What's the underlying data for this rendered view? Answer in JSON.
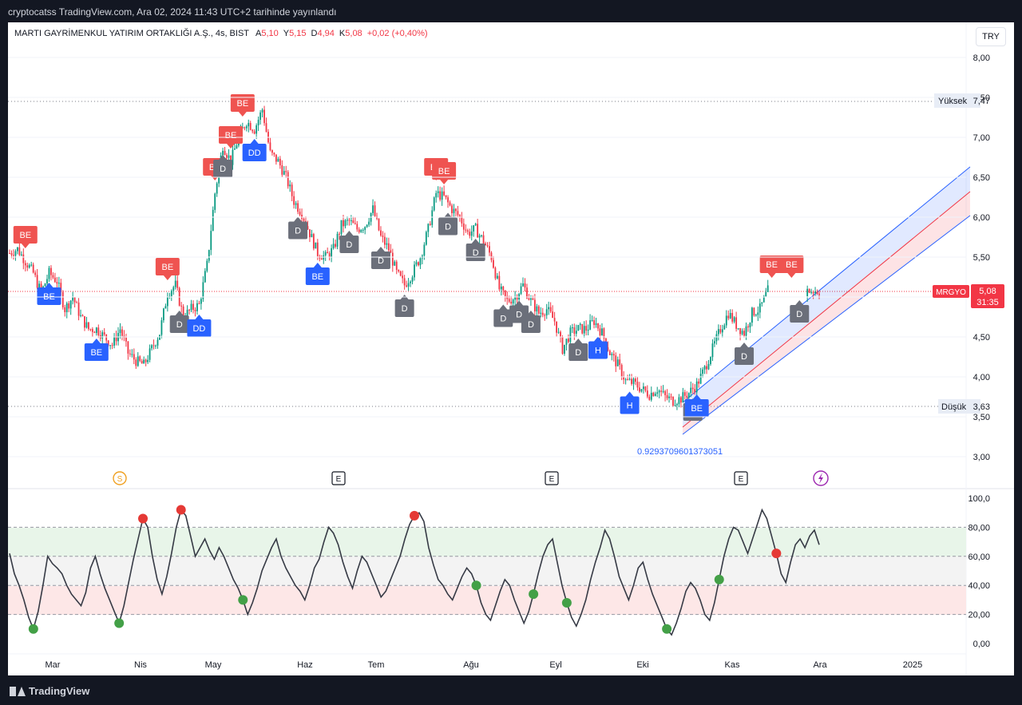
{
  "header": {
    "publish_text": "cryptocatss TradingView.com, Ara 02, 2024 11:43 UTC+2 tarihinde yayınlandı"
  },
  "legend": {
    "symbol": "MARTI GAYRİMENKUL YATIRIM ORTAKLIĞI A.Ş., 4s, BIST",
    "open_label": "A",
    "open": "5,10",
    "high_label": "Y",
    "high": "5,15",
    "low_label": "D",
    "low": "4,94",
    "close_label": "K",
    "close": "5,08",
    "change": "+0,02 (+0,40%)"
  },
  "currency": "TRY",
  "price_axis": {
    "ticks": [
      "8,00",
      "7,50",
      "7,00",
      "6,50",
      "6,00",
      "5,50",
      "5,00",
      "4,50",
      "4,00",
      "3,50",
      "3,00"
    ],
    "high_label": "Yüksek",
    "high_value": "7,47",
    "low_label": "Düşük",
    "low_value": "3,63",
    "ticker_tag": "MRGYO",
    "last_price": "5,08",
    "countdown": "31:35"
  },
  "channel_label": "0.9293709601373051",
  "time_axis": [
    "Mar",
    "Nis",
    "May",
    "Haz",
    "Tem",
    "Ağu",
    "Eyl",
    "Eki",
    "Kas",
    "Ara",
    "2025"
  ],
  "events": [
    "S",
    "E",
    "E",
    "E"
  ],
  "osc_axis": [
    "100,0",
    "80,00",
    "60,00",
    "40,00",
    "20,00",
    "0,00"
  ],
  "branding": "TradingView",
  "colors": {
    "up": "#089981",
    "down": "#f23645",
    "signal_red": "#ef5350",
    "signal_blue": "#2962ff",
    "signal_gray": "#6b6f7a",
    "channel_blue": "#2962ff",
    "channel_red": "#f23645",
    "osc_line": "#363a45"
  },
  "chart_data": [
    {
      "type": "candlestick",
      "x_axis": [
        "Mar",
        "Nis",
        "May",
        "Haz",
        "Tem",
        "Ağu",
        "Eyl",
        "Eki",
        "Kas",
        "Ara",
        "2025"
      ],
      "y_range": [
        2.9,
        8.2
      ],
      "close_path": [
        [
          0,
          5.55
        ],
        [
          4,
          5.6
        ],
        [
          8,
          5.45
        ],
        [
          12,
          5.3
        ],
        [
          16,
          5.05
        ],
        [
          20,
          5.3
        ],
        [
          24,
          5.2
        ],
        [
          28,
          4.85
        ],
        [
          32,
          5.0
        ],
        [
          36,
          4.75
        ],
        [
          40,
          4.6
        ],
        [
          44,
          4.6
        ],
        [
          48,
          4.5
        ],
        [
          52,
          4.4
        ],
        [
          56,
          4.6
        ],
        [
          60,
          4.3
        ],
        [
          64,
          4.2
        ],
        [
          68,
          4.15
        ],
        [
          72,
          4.35
        ],
        [
          76,
          4.55
        ],
        [
          80,
          5.05
        ],
        [
          84,
          5.15
        ],
        [
          88,
          4.75
        ],
        [
          92,
          4.85
        ],
        [
          96,
          4.9
        ],
        [
          100,
          5.4
        ],
        [
          104,
          6.3
        ],
        [
          108,
          6.9
        ],
        [
          112,
          6.7
        ],
        [
          116,
          7.0
        ],
        [
          120,
          7.2
        ],
        [
          124,
          7.1
        ],
        [
          128,
          7.35
        ],
        [
          132,
          6.8
        ],
        [
          136,
          6.7
        ],
        [
          140,
          6.5
        ],
        [
          144,
          6.2
        ],
        [
          148,
          6.05
        ],
        [
          152,
          5.8
        ],
        [
          156,
          5.55
        ],
        [
          160,
          5.5
        ],
        [
          164,
          5.6
        ],
        [
          168,
          5.9
        ],
        [
          172,
          5.95
        ],
        [
          176,
          5.85
        ],
        [
          180,
          5.9
        ],
        [
          184,
          6.1
        ],
        [
          188,
          5.75
        ],
        [
          192,
          5.6
        ],
        [
          196,
          5.3
        ],
        [
          200,
          5.15
        ],
        [
          204,
          5.3
        ],
        [
          208,
          5.5
        ],
        [
          212,
          5.85
        ],
        [
          216,
          6.3
        ],
        [
          220,
          6.25
        ],
        [
          224,
          6.1
        ],
        [
          228,
          6.0
        ],
        [
          232,
          5.8
        ],
        [
          236,
          5.85
        ],
        [
          240,
          5.7
        ],
        [
          244,
          5.5
        ],
        [
          248,
          5.1
        ],
        [
          252,
          4.95
        ],
        [
          256,
          5.0
        ],
        [
          260,
          5.15
        ],
        [
          264,
          4.95
        ],
        [
          268,
          4.8
        ],
        [
          272,
          4.85
        ],
        [
          276,
          4.7
        ],
        [
          280,
          4.35
        ],
        [
          284,
          4.55
        ],
        [
          288,
          4.6
        ],
        [
          292,
          4.6
        ],
        [
          296,
          4.7
        ],
        [
          300,
          4.55
        ],
        [
          304,
          4.3
        ],
        [
          308,
          4.15
        ],
        [
          312,
          3.95
        ],
        [
          316,
          3.92
        ],
        [
          320,
          3.85
        ],
        [
          324,
          3.78
        ],
        [
          328,
          3.85
        ],
        [
          332,
          3.75
        ],
        [
          336,
          3.7
        ],
        [
          340,
          3.73
        ],
        [
          344,
          3.8
        ],
        [
          348,
          3.9
        ],
        [
          352,
          4.1
        ],
        [
          356,
          4.35
        ],
        [
          360,
          4.6
        ],
        [
          364,
          4.8
        ],
        [
          368,
          4.65
        ],
        [
          372,
          4.55
        ],
        [
          376,
          4.8
        ],
        [
          380,
          4.85
        ],
        [
          384,
          5.08
        ]
      ],
      "signals": [
        {
          "text": "BE",
          "kind": "above",
          "color": "red",
          "i": 8
        },
        {
          "text": "BE",
          "kind": "below",
          "color": "blue",
          "i": 20
        },
        {
          "text": "BE",
          "kind": "below",
          "color": "blue",
          "i": 44
        },
        {
          "text": "BE",
          "kind": "above",
          "color": "red",
          "i": 80
        },
        {
          "text": "D",
          "kind": "below",
          "color": "gray",
          "i": 86
        },
        {
          "text": "DD",
          "kind": "below",
          "color": "blue",
          "i": 96
        },
        {
          "text": "BE",
          "kind": "above",
          "color": "red",
          "i": 104
        },
        {
          "text": "D",
          "kind": "below",
          "color": "gray",
          "i": 108
        },
        {
          "text": "BE",
          "kind": "above",
          "color": "red",
          "i": 112
        },
        {
          "text": "BE",
          "kind": "above",
          "color": "red",
          "i": 118
        },
        {
          "text": "DD",
          "kind": "below",
          "color": "blue",
          "i": 124
        },
        {
          "text": "D",
          "kind": "below",
          "color": "gray",
          "i": 146
        },
        {
          "text": "BE",
          "kind": "below",
          "color": "blue",
          "i": 156
        },
        {
          "text": "D",
          "kind": "below",
          "color": "gray",
          "i": 172
        },
        {
          "text": "D",
          "kind": "below",
          "color": "gray",
          "i": 188
        },
        {
          "text": "D",
          "kind": "below",
          "color": "gray",
          "i": 200
        },
        {
          "text": "BE",
          "kind": "above",
          "color": "red",
          "i": 216
        },
        {
          "text": "BE",
          "kind": "above",
          "color": "red",
          "i": 220
        },
        {
          "text": "D",
          "kind": "below",
          "color": "gray",
          "i": 222
        },
        {
          "text": "D",
          "kind": "below",
          "color": "gray",
          "i": 236
        },
        {
          "text": "D",
          "kind": "below",
          "color": "gray",
          "i": 250
        },
        {
          "text": "D",
          "kind": "below",
          "color": "gray",
          "i": 258
        },
        {
          "text": "D",
          "kind": "below",
          "color": "gray",
          "i": 264
        },
        {
          "text": "D",
          "kind": "below",
          "color": "gray",
          "i": 288
        },
        {
          "text": "H",
          "kind": "below",
          "color": "blue",
          "i": 298
        },
        {
          "text": "H",
          "kind": "below",
          "color": "blue",
          "i": 314
        },
        {
          "text": "D",
          "kind": "below",
          "color": "gray",
          "i": 346
        },
        {
          "text": "BE",
          "kind": "below",
          "color": "blue",
          "i": 348
        },
        {
          "text": "D",
          "kind": "below",
          "color": "gray",
          "i": 372
        },
        {
          "text": "BE",
          "kind": "above",
          "color": "red",
          "i": 386
        },
        {
          "text": "BE",
          "kind": "above",
          "color": "red",
          "i": 396
        },
        {
          "text": "D",
          "kind": "below",
          "color": "gray",
          "i": 400
        }
      ]
    },
    {
      "type": "line",
      "name": "oscillator",
      "y_range": [
        0,
        100
      ],
      "bands": [
        [
          20,
          40
        ],
        [
          60,
          80
        ]
      ],
      "levels": [
        100,
        80,
        60,
        40,
        20,
        0
      ],
      "values": [
        62,
        48,
        40,
        30,
        18,
        10,
        22,
        40,
        60,
        55,
        52,
        48,
        40,
        34,
        30,
        26,
        35,
        52,
        60,
        48,
        38,
        30,
        22,
        14,
        26,
        42,
        58,
        72,
        86,
        80,
        60,
        44,
        34,
        46,
        62,
        80,
        92,
        88,
        74,
        60,
        66,
        72,
        64,
        58,
        66,
        60,
        52,
        44,
        38,
        30,
        20,
        28,
        38,
        50,
        58,
        66,
        72,
        60,
        52,
        46,
        40,
        36,
        30,
        40,
        52,
        58,
        70,
        80,
        76,
        68,
        56,
        46,
        38,
        50,
        60,
        56,
        48,
        40,
        32,
        36,
        44,
        52,
        60,
        72,
        82,
        88,
        90,
        84,
        66,
        54,
        44,
        40,
        34,
        30,
        38,
        46,
        52,
        48,
        40,
        28,
        20,
        16,
        26,
        36,
        44,
        40,
        30,
        22,
        14,
        22,
        34,
        48,
        60,
        68,
        72,
        56,
        40,
        28,
        18,
        12,
        20,
        30,
        44,
        56,
        66,
        78,
        72,
        60,
        46,
        38,
        30,
        40,
        52,
        56,
        44,
        34,
        26,
        18,
        10,
        6,
        14,
        24,
        36,
        42,
        38,
        30,
        20,
        16,
        28,
        44,
        60,
        72,
        80,
        78,
        70,
        62,
        72,
        82,
        92,
        86,
        74,
        62,
        48,
        42,
        56,
        68,
        72,
        66,
        74,
        78,
        68
      ],
      "dots_red": [
        28,
        36,
        85,
        161
      ],
      "dots_green": [
        5,
        23,
        49,
        98,
        110,
        117,
        138,
        149
      ]
    }
  ]
}
